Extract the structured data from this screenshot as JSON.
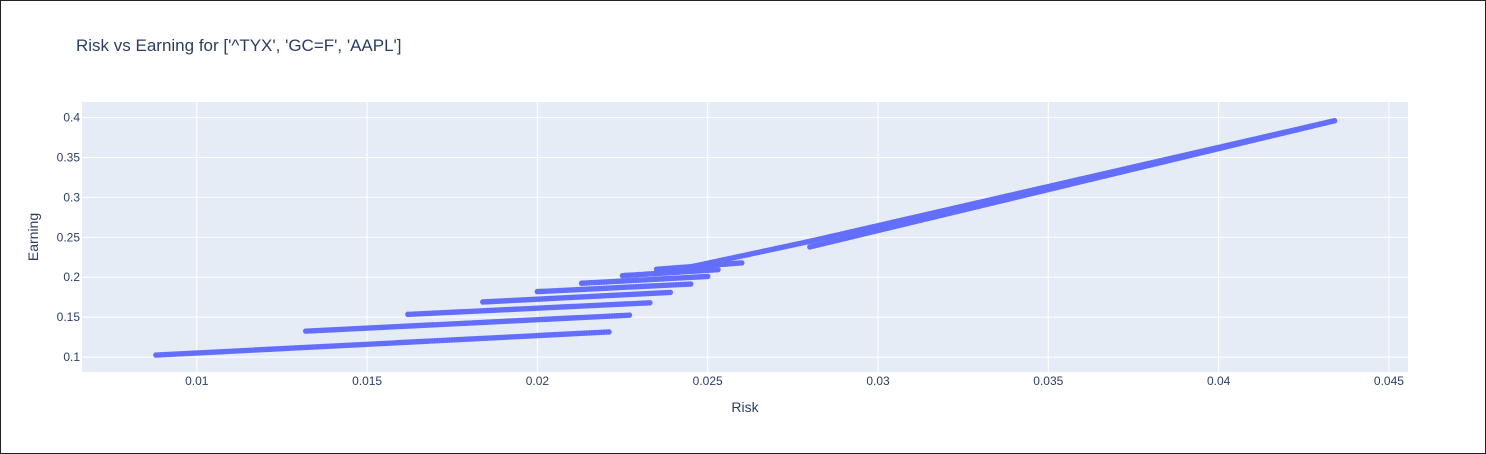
{
  "chart_data": {
    "type": "scatter",
    "title": "Risk vs Earning for ['^TYX', 'GC=F', 'AAPL']",
    "xlabel": "Risk",
    "ylabel": "Earning",
    "xlim": [
      0.00663,
      0.04556
    ],
    "ylim": [
      0.0813,
      0.4195
    ],
    "xticks": [
      0.01,
      0.015,
      0.02,
      0.025,
      0.03,
      0.035,
      0.04,
      0.045
    ],
    "xtick_labels": [
      "0.01",
      "0.015",
      "0.02",
      "0.025",
      "0.03",
      "0.035",
      "0.04",
      "0.045"
    ],
    "yticks": [
      0.1,
      0.15,
      0.2,
      0.25,
      0.3,
      0.35,
      0.4
    ],
    "ytick_labels": [
      "0.1",
      "0.15",
      "0.2",
      "0.25",
      "0.3",
      "0.35",
      "0.4"
    ],
    "grid": true,
    "plot_bgcolor": "#E5ECF6",
    "marker_color": "#636EFA",
    "series": [
      {
        "segments": [
          {
            "x": [
              0.0088,
              0.0221
            ],
            "y": [
              0.1025,
              0.1315
            ]
          },
          {
            "x": [
              0.0132,
              0.0227
            ],
            "y": [
              0.1325,
              0.1525
            ]
          },
          {
            "x": [
              0.0162,
              0.0233
            ],
            "y": [
              0.1535,
              0.168
            ]
          },
          {
            "x": [
              0.0184,
              0.0239
            ],
            "y": [
              0.169,
              0.181
            ]
          },
          {
            "x": [
              0.02,
              0.0245
            ],
            "y": [
              0.182,
              0.1915
            ]
          },
          {
            "x": [
              0.0213,
              0.025
            ],
            "y": [
              0.1925,
              0.201
            ]
          },
          {
            "x": [
              0.0225,
              0.0253
            ],
            "y": [
              0.202,
              0.2095
            ]
          },
          {
            "x": [
              0.0235,
              0.026
            ],
            "y": [
              0.21,
              0.218
            ]
          },
          {
            "x": [
              0.0245,
              0.028
            ],
            "y": [
              0.213,
              0.245
            ]
          },
          {
            "x": [
              0.028,
              0.0434
            ],
            "y": [
              0.238,
              0.396
            ]
          },
          {
            "x": [
              0.028,
              0.0434
            ],
            "y": [
              0.245,
              0.396
            ]
          }
        ]
      }
    ]
  }
}
